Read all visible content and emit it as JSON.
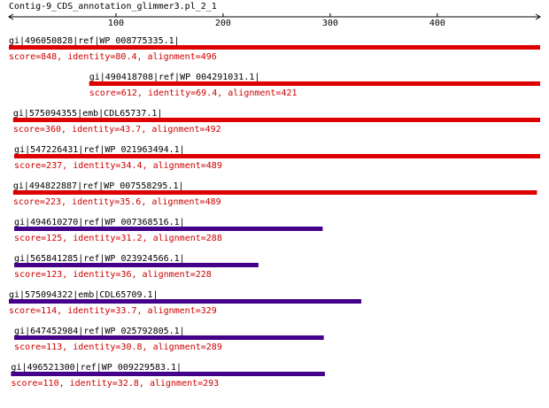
{
  "title": "Contig-9_CDS_annotation_glimmer3.pl_2_1",
  "axis": {
    "min": 0,
    "max": 496,
    "ticks": [
      100,
      200,
      300,
      400
    ]
  },
  "colors": {
    "text": "#000000",
    "score_text": "#cc0000",
    "bar_high": "#dd0000",
    "bar_low": "#440088"
  },
  "hits": [
    {
      "label": "gi|496050828|ref|WP_008775335.1|",
      "score_text": "score=848, identity=80.4, alignment=496",
      "start": 1,
      "end": 496,
      "color": "#dd0000"
    },
    {
      "label": "gi|490418708|ref|WP_004291031.1|",
      "score_text": "score=612, identity=69.4, alignment=421",
      "start": 76,
      "end": 496,
      "color": "#dd0000"
    },
    {
      "label": "gi|575094355|emb|CDL65737.1|",
      "score_text": "score=360, identity=43.7, alignment=492",
      "start": 5,
      "end": 496,
      "color": "#dd0000"
    },
    {
      "label": "gi|547226431|ref|WP_021963494.1|",
      "score_text": "score=237, identity=34.4, alignment=489",
      "start": 6,
      "end": 496,
      "color": "#dd0000"
    },
    {
      "label": "gi|494822887|ref|WP_007558295.1|",
      "score_text": "score=223, identity=35.6, alignment=489",
      "start": 5,
      "end": 493,
      "color": "#dd0000"
    },
    {
      "label": "gi|494610270|ref|WP_007368516.1|",
      "score_text": "score=125, identity=31.2, alignment=288",
      "start": 6,
      "end": 293,
      "color": "#440088"
    },
    {
      "label": "gi|565841285|ref|WP_023924566.1|",
      "score_text": "score=123, identity=36, alignment=228",
      "start": 6,
      "end": 233,
      "color": "#440088"
    },
    {
      "label": "gi|575094322|emb|CDL65709.1|",
      "score_text": "score=114, identity=33.7, alignment=329",
      "start": 1,
      "end": 329,
      "color": "#440088"
    },
    {
      "label": "gi|647452984|ref|WP_025792805.1|",
      "score_text": "score=113, identity=30.8, alignment=289",
      "start": 6,
      "end": 294,
      "color": "#440088"
    },
    {
      "label": "gi|496521300|ref|WP_009229583.1|",
      "score_text": "score=110, identity=32.8, alignment=293",
      "start": 3,
      "end": 295,
      "color": "#440088"
    }
  ]
}
